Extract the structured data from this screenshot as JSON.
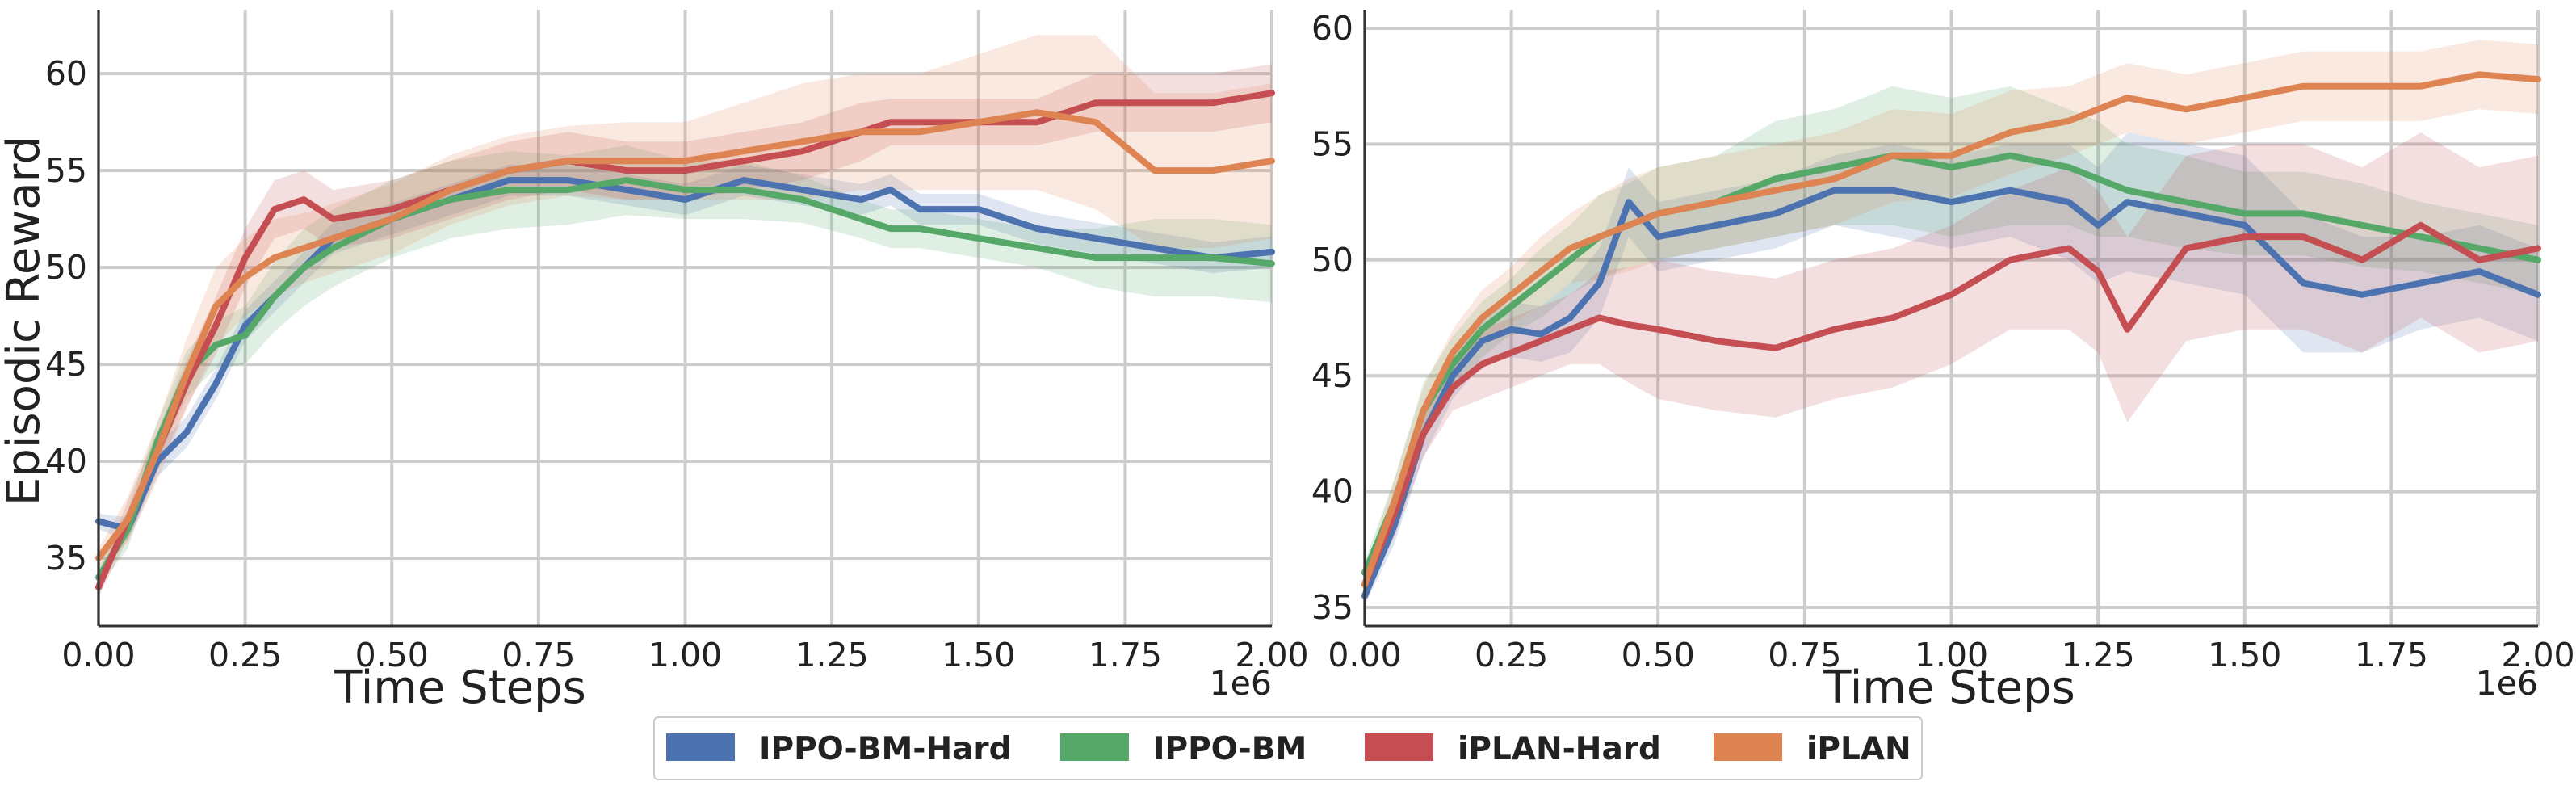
{
  "ylabel": "Episodic Reward",
  "xlabel": "Time Steps",
  "x_multiplier": "1e6",
  "legend": [
    {
      "name": "IPPO-BM-Hard",
      "color": "#4c72b0"
    },
    {
      "name": "IPPO-BM",
      "color": "#55a868"
    },
    {
      "name": "iPLAN-Hard",
      "color": "#c44e52"
    },
    {
      "name": "iPLAN",
      "color": "#dd8452"
    }
  ],
  "chart_data": [
    {
      "type": "line",
      "xlabel": "Time Steps",
      "ylabel": "Episodic Reward",
      "x_multiplier": "1e6",
      "xlim": [
        0,
        2.0
      ],
      "ylim": [
        31.5,
        63.3
      ],
      "xticks": [
        "0.00",
        "0.25",
        "0.50",
        "0.75",
        "1.00",
        "1.25",
        "1.50",
        "1.75",
        "2.00"
      ],
      "yticks": [
        "35",
        "40",
        "45",
        "50",
        "55",
        "60"
      ],
      "grid": true,
      "x": [
        0.0,
        0.05,
        0.1,
        0.15,
        0.2,
        0.25,
        0.3,
        0.35,
        0.4,
        0.5,
        0.6,
        0.7,
        0.8,
        0.9,
        1.0,
        1.1,
        1.2,
        1.3,
        1.35,
        1.4,
        1.5,
        1.6,
        1.7,
        1.8,
        1.9,
        2.0
      ],
      "series": [
        {
          "name": "IPPO-BM-Hard",
          "color": "#4c72b0",
          "values": [
            36.9,
            36.5,
            40.0,
            41.5,
            44.0,
            47.0,
            48.5,
            50.0,
            51.5,
            52.5,
            53.5,
            54.5,
            54.5,
            54.0,
            53.5,
            54.5,
            54.0,
            53.5,
            54.0,
            53.0,
            53.0,
            52.0,
            51.5,
            51.0,
            50.5,
            50.8
          ],
          "band": [
            0.4,
            0.6,
            0.8,
            0.8,
            0.8,
            0.8,
            0.8,
            0.8,
            0.8,
            0.8,
            0.8,
            0.8,
            0.8,
            0.8,
            0.8,
            0.8,
            0.8,
            0.8,
            0.8,
            0.8,
            0.8,
            0.8,
            0.8,
            0.8,
            0.8,
            0.8
          ]
        },
        {
          "name": "IPPO-BM",
          "color": "#55a868",
          "values": [
            34.0,
            36.5,
            41.0,
            44.5,
            46.0,
            46.5,
            48.5,
            50.0,
            51.0,
            52.5,
            53.5,
            54.0,
            54.0,
            54.5,
            54.0,
            54.0,
            53.5,
            52.5,
            52.0,
            52.0,
            51.5,
            51.0,
            50.5,
            50.5,
            50.5,
            50.2
          ],
          "band": [
            0.5,
            1.0,
            1.0,
            1.2,
            1.2,
            1.5,
            1.8,
            2.0,
            2.0,
            2.0,
            2.0,
            2.0,
            1.8,
            1.8,
            1.5,
            1.5,
            1.2,
            1.0,
            1.0,
            1.0,
            1.0,
            1.0,
            1.5,
            2.0,
            2.0,
            2.0
          ]
        },
        {
          "name": "iPLAN-Hard",
          "color": "#c44e52",
          "values": [
            33.5,
            37.0,
            40.5,
            44.0,
            47.0,
            50.5,
            53.0,
            53.5,
            52.5,
            53.0,
            54.0,
            55.0,
            55.5,
            55.0,
            55.0,
            55.5,
            56.0,
            57.0,
            57.5,
            57.5,
            57.5,
            57.5,
            58.5,
            58.5,
            58.5,
            59.0
          ],
          "band": [
            0.5,
            1.0,
            1.0,
            1.2,
            1.5,
            1.5,
            1.5,
            1.5,
            1.5,
            1.5,
            1.5,
            1.5,
            1.5,
            1.5,
            1.5,
            1.5,
            1.5,
            1.5,
            1.2,
            1.2,
            1.2,
            1.2,
            1.5,
            1.5,
            1.5,
            1.5
          ]
        },
        {
          "name": "iPLAN",
          "color": "#dd8452",
          "values": [
            35.0,
            37.0,
            40.5,
            44.5,
            48.0,
            49.5,
            50.5,
            51.0,
            51.5,
            52.5,
            54.0,
            55.0,
            55.5,
            55.5,
            55.5,
            56.0,
            56.5,
            57.0,
            57.0,
            57.0,
            57.5,
            58.0,
            57.5,
            55.0,
            55.0,
            55.5
          ],
          "band": [
            0.5,
            1.2,
            1.5,
            1.8,
            2.0,
            2.0,
            2.0,
            1.8,
            1.8,
            1.8,
            1.8,
            1.8,
            1.8,
            2.0,
            2.0,
            2.5,
            3.0,
            3.0,
            3.0,
            3.0,
            3.5,
            4.0,
            4.5,
            4.0,
            4.0,
            4.0
          ]
        }
      ]
    },
    {
      "type": "line",
      "xlabel": "Time Steps",
      "ylabel": "",
      "x_multiplier": "1e6",
      "xlim": [
        0,
        2.0
      ],
      "ylim": [
        34.2,
        60.8
      ],
      "xticks": [
        "0.00",
        "0.25",
        "0.50",
        "0.75",
        "1.00",
        "1.25",
        "1.50",
        "1.75",
        "2.00"
      ],
      "yticks": [
        "35",
        "40",
        "45",
        "50",
        "55",
        "60"
      ],
      "grid": true,
      "x": [
        0.0,
        0.05,
        0.1,
        0.15,
        0.2,
        0.25,
        0.3,
        0.35,
        0.4,
        0.45,
        0.5,
        0.6,
        0.7,
        0.8,
        0.9,
        1.0,
        1.1,
        1.2,
        1.25,
        1.3,
        1.4,
        1.5,
        1.6,
        1.7,
        1.8,
        1.9,
        2.0
      ],
      "series": [
        {
          "name": "IPPO-BM-Hard",
          "color": "#4c72b0",
          "values": [
            35.5,
            38.5,
            42.5,
            45.0,
            46.5,
            47.0,
            46.8,
            47.5,
            49.0,
            52.5,
            51.0,
            51.5,
            52.0,
            53.0,
            53.0,
            52.5,
            53.0,
            52.5,
            51.5,
            52.5,
            52.0,
            51.5,
            49.0,
            48.5,
            49.0,
            49.5,
            48.5
          ],
          "band": [
            0.4,
            0.8,
            1.0,
            1.0,
            1.0,
            1.2,
            1.2,
            1.5,
            1.5,
            1.5,
            1.5,
            1.5,
            1.5,
            1.5,
            2.0,
            2.0,
            2.0,
            2.5,
            2.5,
            3.0,
            3.0,
            3.0,
            3.0,
            2.5,
            2.0,
            2.0,
            2.0
          ]
        },
        {
          "name": "IPPO-BM",
          "color": "#55a868",
          "values": [
            36.5,
            39.5,
            43.5,
            45.5,
            47.0,
            48.0,
            49.0,
            50.0,
            51.0,
            51.5,
            52.0,
            52.5,
            53.5,
            54.0,
            54.5,
            54.0,
            54.5,
            54.0,
            53.5,
            53.0,
            52.5,
            52.0,
            52.0,
            51.5,
            51.0,
            50.5,
            50.0
          ],
          "band": [
            0.5,
            1.0,
            1.2,
            1.2,
            1.2,
            1.2,
            1.5,
            1.5,
            1.8,
            1.8,
            2.0,
            2.0,
            2.5,
            2.5,
            3.0,
            3.0,
            3.0,
            2.5,
            2.5,
            2.0,
            2.0,
            1.8,
            1.8,
            1.8,
            1.5,
            1.5,
            1.5
          ]
        },
        {
          "name": "iPLAN-Hard",
          "color": "#c44e52",
          "values": [
            36.0,
            39.0,
            42.5,
            44.5,
            45.5,
            46.0,
            46.5,
            47.0,
            47.5,
            47.2,
            47.0,
            46.5,
            46.2,
            47.0,
            47.5,
            48.5,
            50.0,
            50.5,
            49.5,
            47.0,
            50.5,
            51.0,
            51.0,
            50.0,
            51.5,
            50.0,
            50.5
          ],
          "band": [
            0.5,
            1.0,
            1.0,
            1.0,
            1.5,
            1.5,
            1.5,
            1.5,
            2.0,
            2.5,
            3.0,
            3.0,
            3.0,
            3.0,
            3.0,
            3.0,
            3.0,
            3.5,
            3.5,
            4.0,
            4.0,
            4.0,
            4.0,
            4.0,
            4.0,
            4.0,
            4.0
          ]
        },
        {
          "name": "iPLAN",
          "color": "#dd8452",
          "values": [
            36.0,
            39.5,
            43.5,
            46.0,
            47.5,
            48.5,
            49.5,
            50.5,
            51.0,
            51.5,
            52.0,
            52.5,
            53.0,
            53.5,
            54.5,
            54.5,
            55.5,
            56.0,
            56.5,
            57.0,
            56.5,
            57.0,
            57.5,
            57.5,
            57.5,
            58.0,
            57.8
          ],
          "band": [
            0.5,
            1.0,
            1.0,
            1.0,
            1.2,
            1.2,
            1.5,
            1.5,
            1.8,
            2.0,
            2.0,
            2.0,
            2.0,
            2.0,
            2.0,
            1.8,
            1.8,
            1.5,
            1.5,
            1.5,
            1.5,
            1.5,
            1.5,
            1.5,
            1.5,
            1.5,
            1.5
          ]
        }
      ]
    }
  ]
}
